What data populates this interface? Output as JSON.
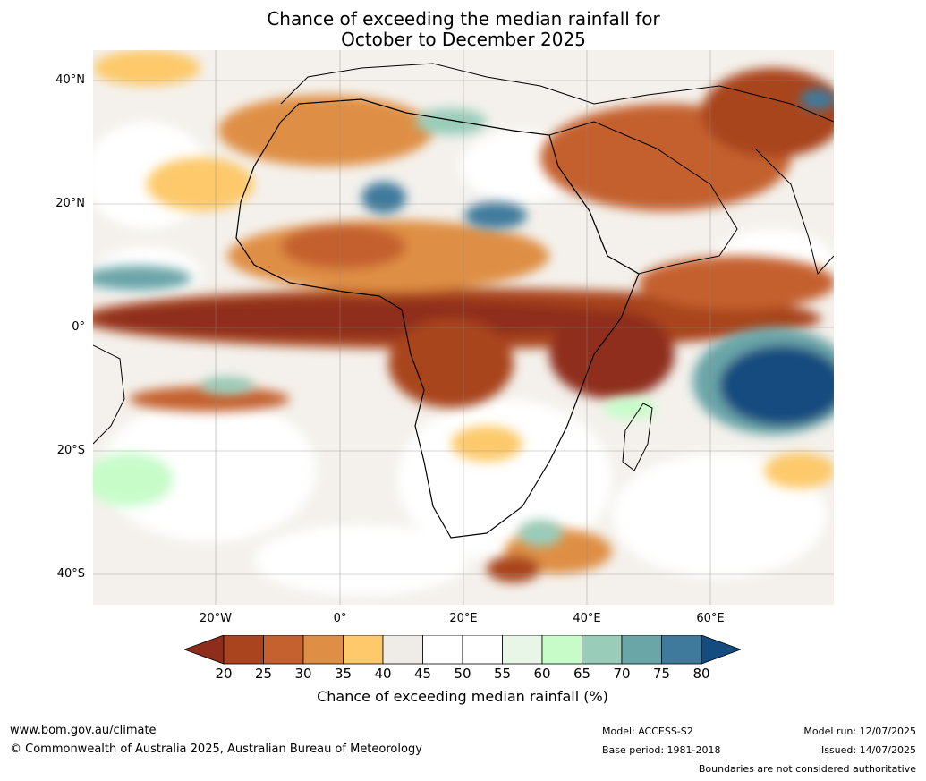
{
  "title_line1": "Chance of exceeding the median rainfall for",
  "title_line2": "October to December 2025",
  "lat_labels": [
    "40°N",
    "20°N",
    "0°",
    "20°S",
    "40°S"
  ],
  "lon_labels": [
    "20°W",
    "0°",
    "20°E",
    "40°E",
    "60°E"
  ],
  "colorbar": {
    "ticks": [
      "20",
      "25",
      "30",
      "35",
      "40",
      "45",
      "50",
      "55",
      "60",
      "65",
      "70",
      "75",
      "80"
    ],
    "colors": [
      "#8f2d1c",
      "#a9441f",
      "#c4612f",
      "#df8f45",
      "#fdc96a",
      "#efebe6",
      "#ffffff",
      "#ffffff",
      "#e7f6e7",
      "#c7fcc9",
      "#9accba",
      "#6aa5a8",
      "#3f7a9c",
      "#144c7f"
    ],
    "label": "Chance of exceeding median rainfall (%)"
  },
  "footer": {
    "website": "www.bom.gov.au/climate",
    "copyright": "© Commonwealth of Australia 2025, Australian Bureau of Meteorology",
    "model": "Model: ACCESS-S2",
    "base_period": "Base period: 1981-2018",
    "model_run": "Model run: 12/07/2025",
    "issued": "Issued: 14/07/2025",
    "disclaimer": "Boundaries are not considered authoritative"
  }
}
